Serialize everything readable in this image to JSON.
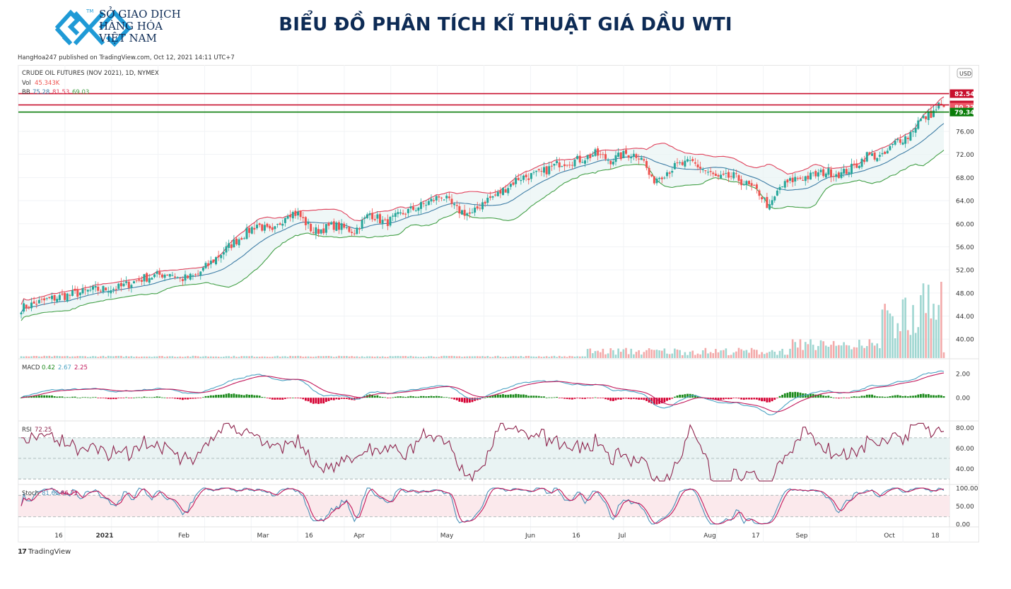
{
  "header": {
    "logo_lines": [
      "SỞ GIAO DỊCH",
      "HÀNG HÓA",
      "VIỆT NAM"
    ],
    "logo_tm": "TM",
    "title": "BIỂU ĐỒ PHÂN TÍCH KĨ THUẬT GIÁ DẦU WTI",
    "published": "HangHoa247 published on TradingView.com, Oct 12, 2021 14:11 UTC+7"
  },
  "footer": {
    "brand": "TradingView",
    "brand_mark": "17"
  },
  "colors": {
    "up": "#26a69a",
    "down": "#ef5350",
    "bb_upper": "#e0415b",
    "bb_basis": "#3f7ea6",
    "bb_lower": "#43a047",
    "macd": "#4aa3c3",
    "signal": "#c2185b",
    "hist_pos": "#1b8a1b",
    "hist_neg": "#d50032",
    "rsi": "#8e244d",
    "stoch_k": "#4a90b8",
    "stoch_d": "#c2185b",
    "res": "#c8102e",
    "sup": "#0a7d0a"
  },
  "chart_data": {
    "type": "candlestick",
    "symbol_line": "CRUDE OIL FUTURES (NOV 2021), 1D, NYMEX",
    "currency": "USD",
    "vol_label": "Vol",
    "vol_value": "45.343K",
    "bb_label": "BB",
    "bb_values": [
      "75.28",
      "81.53",
      "69.03"
    ],
    "price_axis": {
      "ticks": [
        "76.00",
        "72.00",
        "68.00",
        "64.00",
        "60.00",
        "56.00",
        "52.00",
        "48.00",
        "44.00",
        "40.00"
      ],
      "range": [
        36.6,
        87.5
      ]
    },
    "levels": [
      {
        "value": 82.54,
        "label": "82.54",
        "kind": "resistance"
      },
      {
        "value": 80.58,
        "label": "80.58",
        "kind": "resistance"
      },
      {
        "value": 80.22,
        "label": "80.22",
        "kind": "price"
      },
      {
        "value": 79.34,
        "label": "79.34",
        "kind": "support"
      }
    ],
    "x_axis_labels": [
      "16",
      "2021",
      "Feb",
      "Mar",
      "16",
      "Apr",
      "May",
      "Jun",
      "16",
      "Jul",
      "Aug",
      "17",
      "Sep",
      "Oct",
      "18"
    ],
    "close_anchors": [
      [
        0,
        45.4
      ],
      [
        10,
        46.8
      ],
      [
        18,
        47.6
      ],
      [
        28,
        48.5
      ],
      [
        38,
        48.9
      ],
      [
        48,
        50.6
      ],
      [
        58,
        51.5
      ],
      [
        62,
        50.4
      ],
      [
        68,
        50.9
      ],
      [
        72,
        52.5
      ],
      [
        82,
        56.4
      ],
      [
        92,
        59.9
      ],
      [
        98,
        58.3
      ],
      [
        104,
        62.0
      ],
      [
        108,
        61.7
      ],
      [
        114,
        58.6
      ],
      [
        122,
        59.7
      ],
      [
        130,
        58.7
      ],
      [
        136,
        61.8
      ],
      [
        142,
        60.1
      ],
      [
        150,
        62.0
      ],
      [
        158,
        63.5
      ],
      [
        164,
        64.9
      ],
      [
        170,
        62.4
      ],
      [
        176,
        61.5
      ],
      [
        180,
        63.8
      ],
      [
        186,
        65.1
      ],
      [
        194,
        67.9
      ],
      [
        202,
        68.6
      ],
      [
        210,
        70.5
      ],
      [
        218,
        71.1
      ],
      [
        224,
        72.1
      ],
      [
        230,
        71.0
      ],
      [
        236,
        72.1
      ],
      [
        242,
        71.8
      ],
      [
        246,
        67.4
      ],
      [
        250,
        68.5
      ],
      [
        256,
        70.1
      ],
      [
        262,
        70.6
      ],
      [
        266,
        69.4
      ],
      [
        272,
        67.8
      ],
      [
        278,
        68.2
      ],
      [
        284,
        66.5
      ],
      [
        288,
        65.3
      ],
      [
        292,
        62.7
      ],
      [
        296,
        66.3
      ],
      [
        302,
        67.8
      ],
      [
        308,
        68.2
      ],
      [
        314,
        69.0
      ],
      [
        320,
        68.6
      ],
      [
        326,
        70.2
      ],
      [
        330,
        71.9
      ],
      [
        336,
        71.5
      ],
      [
        342,
        74.5
      ],
      [
        346,
        75.1
      ],
      [
        350,
        77.7
      ],
      [
        354,
        78.8
      ],
      [
        356,
        79.3
      ],
      [
        358,
        80.5
      ],
      [
        360,
        80.22
      ]
    ],
    "macd": {
      "label": "MACD",
      "values": [
        "0.42",
        "2.67",
        "2.25"
      ],
      "ticks": [
        "2.00",
        "0.00"
      ],
      "range": [
        -1.8,
        3.1
      ]
    },
    "rsi": {
      "label": "RSI",
      "value": "72.25",
      "ticks": [
        "80.00",
        "60.00",
        "40.00"
      ],
      "bands": [
        70,
        50,
        30
      ],
      "range": [
        26,
        85
      ]
    },
    "stoch": {
      "label": "Stoch",
      "values": [
        "81.65",
        "86.72"
      ],
      "ticks": [
        "100.00",
        "50.00",
        "0.00"
      ],
      "bands": [
        80,
        20
      ],
      "range": [
        -4,
        106
      ]
    }
  }
}
